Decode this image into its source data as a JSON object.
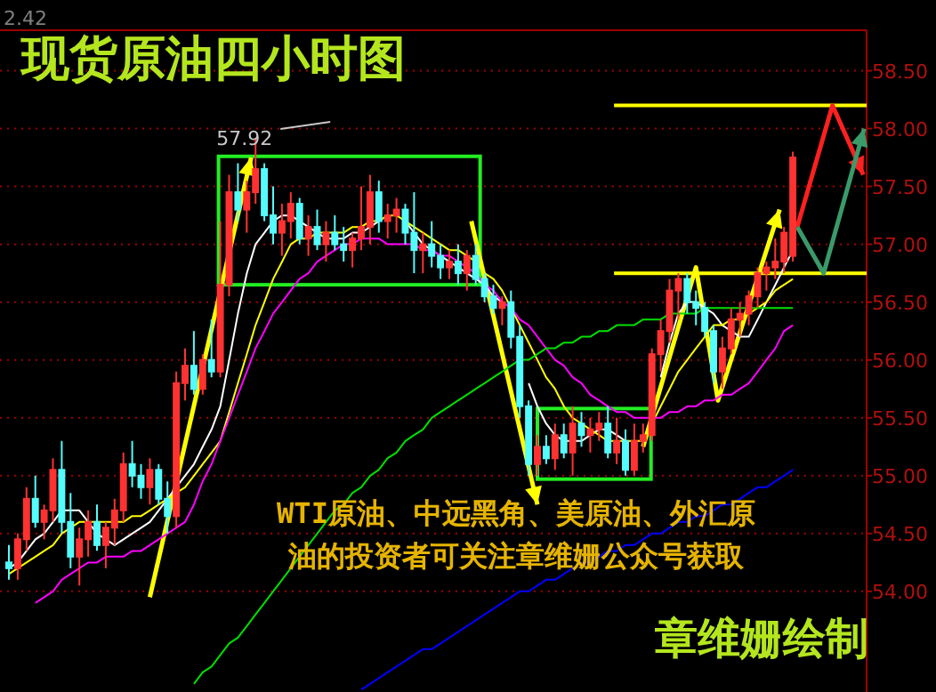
{
  "chart_data": {
    "type": "candlestick",
    "title": "现货原油四小时图",
    "annotations": [
      "57.92",
      "2.42",
      "WTI原油、中远黑角、美原油、外汇原",
      "油的投资者可关注章维姗公众号获取",
      "章维姗绘制"
    ],
    "categories": [
      null,
      null,
      null,
      null,
      null,
      null,
      null,
      null,
      null,
      null,
      null,
      null,
      null,
      null,
      null,
      null,
      null,
      null,
      null,
      null,
      null,
      null,
      null,
      null,
      null,
      null,
      null,
      null,
      null,
      null,
      null,
      null,
      null,
      null,
      null,
      null,
      null,
      null,
      null,
      null,
      null,
      null,
      null,
      null,
      null,
      null,
      null,
      null,
      null,
      null,
      null,
      null,
      null,
      null,
      null,
      null,
      null,
      null,
      null,
      null,
      null,
      null,
      null,
      null,
      null,
      null,
      null,
      null,
      null,
      null,
      null,
      null,
      null,
      null,
      null,
      null,
      null,
      null,
      null,
      null,
      null,
      null,
      null,
      null,
      null,
      null,
      null,
      null,
      null,
      null
    ],
    "ohlc": [
      [
        54.25,
        54.4,
        54.1,
        54.2
      ],
      [
        54.2,
        54.5,
        54.1,
        54.45
      ],
      [
        54.45,
        54.9,
        54.35,
        54.8
      ],
      [
        54.8,
        55.0,
        54.55,
        54.6
      ],
      [
        54.6,
        54.75,
        54.45,
        54.7
      ],
      [
        54.7,
        55.15,
        54.6,
        55.05
      ],
      [
        55.05,
        55.3,
        54.5,
        54.6
      ],
      [
        54.6,
        54.85,
        54.2,
        54.3
      ],
      [
        54.3,
        54.55,
        54.05,
        54.45
      ],
      [
        54.45,
        54.7,
        54.3,
        54.6
      ],
      [
        54.6,
        54.75,
        54.35,
        54.4
      ],
      [
        54.4,
        54.6,
        54.2,
        54.55
      ],
      [
        54.55,
        54.8,
        54.4,
        54.7
      ],
      [
        54.7,
        55.2,
        54.6,
        55.1
      ],
      [
        55.1,
        55.3,
        54.9,
        55.0
      ],
      [
        55.0,
        55.1,
        54.8,
        54.9
      ],
      [
        54.9,
        55.15,
        54.75,
        55.05
      ],
      [
        55.05,
        55.1,
        54.75,
        54.8
      ],
      [
        54.8,
        54.95,
        54.5,
        54.65
      ],
      [
        54.65,
        55.9,
        54.55,
        55.8
      ],
      [
        55.8,
        56.1,
        55.65,
        55.95
      ],
      [
        55.95,
        56.25,
        55.7,
        55.75
      ],
      [
        55.75,
        56.05,
        55.7,
        56.0
      ],
      [
        56.0,
        56.35,
        55.85,
        55.9
      ],
      [
        55.9,
        57.2,
        55.85,
        56.65
      ],
      [
        56.65,
        57.6,
        56.55,
        57.45
      ],
      [
        57.45,
        57.7,
        57.2,
        57.3
      ],
      [
        57.3,
        57.55,
        57.1,
        57.45
      ],
      [
        57.45,
        57.92,
        57.35,
        57.65
      ],
      [
        57.65,
        57.7,
        57.2,
        57.25
      ],
      [
        57.25,
        57.5,
        57.0,
        57.1
      ],
      [
        57.1,
        57.35,
        56.9,
        57.2
      ],
      [
        57.2,
        57.45,
        57.05,
        57.35
      ],
      [
        57.35,
        57.4,
        57.0,
        57.05
      ],
      [
        57.05,
        57.25,
        56.9,
        57.15
      ],
      [
        57.15,
        57.3,
        56.95,
        57.0
      ],
      [
        57.0,
        57.2,
        56.85,
        57.1
      ],
      [
        57.1,
        57.25,
        56.95,
        57.0
      ],
      [
        57.0,
        57.15,
        56.85,
        56.95
      ],
      [
        56.95,
        57.1,
        56.8,
        57.05
      ],
      [
        57.05,
        57.5,
        56.95,
        57.15
      ],
      [
        57.15,
        57.6,
        57.0,
        57.45
      ],
      [
        57.45,
        57.55,
        57.1,
        57.2
      ],
      [
        57.2,
        57.35,
        57.05,
        57.25
      ],
      [
        57.25,
        57.4,
        57.1,
        57.3
      ],
      [
        57.3,
        57.35,
        57.0,
        57.1
      ],
      [
        57.1,
        57.45,
        56.75,
        56.95
      ],
      [
        56.95,
        57.1,
        56.75,
        57.0
      ],
      [
        57.0,
        57.2,
        56.8,
        56.9
      ],
      [
        56.9,
        57.0,
        56.7,
        56.8
      ],
      [
        56.8,
        56.95,
        56.7,
        56.85
      ],
      [
        56.85,
        57.0,
        56.65,
        56.75
      ],
      [
        56.75,
        56.95,
        56.6,
        56.9
      ],
      [
        56.9,
        57.0,
        56.65,
        56.7
      ],
      [
        56.7,
        56.75,
        56.5,
        56.55
      ],
      [
        56.55,
        56.65,
        56.4,
        56.45
      ],
      [
        56.45,
        56.55,
        56.3,
        56.5
      ],
      [
        56.5,
        56.6,
        56.1,
        56.2
      ],
      [
        56.2,
        56.3,
        55.5,
        55.6
      ],
      [
        55.6,
        55.65,
        55.0,
        55.1
      ],
      [
        55.1,
        55.35,
        55.0,
        55.25
      ],
      [
        55.25,
        55.35,
        55.1,
        55.15
      ],
      [
        55.15,
        55.45,
        55.05,
        55.35
      ],
      [
        55.35,
        55.45,
        55.15,
        55.2
      ],
      [
        55.2,
        55.6,
        55.0,
        55.45
      ],
      [
        55.45,
        55.55,
        55.25,
        55.35
      ],
      [
        55.35,
        55.5,
        55.2,
        55.4
      ],
      [
        55.4,
        55.55,
        55.3,
        55.45
      ],
      [
        55.45,
        55.6,
        55.15,
        55.2
      ],
      [
        55.2,
        55.5,
        55.1,
        55.3
      ],
      [
        55.3,
        55.4,
        55.0,
        55.05
      ],
      [
        55.05,
        55.45,
        55.0,
        55.3
      ],
      [
        55.3,
        55.45,
        55.2,
        55.35
      ],
      [
        55.35,
        56.1,
        55.3,
        56.05
      ],
      [
        56.05,
        56.35,
        55.9,
        56.25
      ],
      [
        56.25,
        56.7,
        56.15,
        56.6
      ],
      [
        56.6,
        56.75,
        56.35,
        56.7
      ],
      [
        56.7,
        56.75,
        56.4,
        56.5
      ],
      [
        56.5,
        56.6,
        56.3,
        56.45
      ],
      [
        56.45,
        56.5,
        56.2,
        56.25
      ],
      [
        56.25,
        56.3,
        55.8,
        55.9
      ],
      [
        55.9,
        56.2,
        55.75,
        56.1
      ],
      [
        56.1,
        56.45,
        56.05,
        56.35
      ],
      [
        56.35,
        56.5,
        56.2,
        56.4
      ],
      [
        56.4,
        56.6,
        56.3,
        56.55
      ],
      [
        56.55,
        56.8,
        56.45,
        56.75
      ],
      [
        56.75,
        56.85,
        56.6,
        56.8
      ],
      [
        56.8,
        57.05,
        56.7,
        56.85
      ],
      [
        56.85,
        57.15,
        56.75,
        57.1
      ],
      [
        56.9,
        57.8,
        56.85,
        57.75
      ]
    ],
    "series": [
      {
        "type": "line",
        "color": "#ffffff",
        "values": [
          54.2,
          54.25,
          54.35,
          54.45,
          54.5,
          54.6,
          54.7,
          54.7,
          54.7,
          54.6,
          54.5,
          54.45,
          54.4,
          54.45,
          54.5,
          54.55,
          54.6,
          54.7,
          54.8,
          54.9,
          55.0,
          55.1,
          55.25,
          55.4,
          55.6,
          56.0,
          56.4,
          56.75,
          57.0,
          57.1,
          57.2,
          57.25,
          57.25,
          57.2,
          57.15,
          57.1,
          57.05,
          57.05,
          57.05,
          57.1,
          57.1,
          57.15,
          57.2,
          null,
          null,
          57.2,
          57.1,
          57.0,
          56.95,
          56.9,
          56.85,
          56.8,
          56.75,
          56.7,
          56.65,
          56.55,
          56.5,
          null,
          null,
          55.8,
          55.6,
          55.45,
          55.35,
          55.3,
          55.3,
          55.3,
          55.35,
          55.4,
          55.4,
          55.35,
          55.3,
          null,
          null,
          null,
          55.85,
          56.15,
          56.4,
          56.5,
          56.5,
          56.45,
          56.4,
          56.3,
          56.25,
          56.2,
          56.2,
          56.35,
          56.5,
          56.65,
          56.8,
          56.95
        ]
      },
      {
        "type": "line",
        "color": "#ffff00",
        "values": [
          54.15,
          54.2,
          54.25,
          54.3,
          54.35,
          54.4,
          54.5,
          54.55,
          54.6,
          54.6,
          54.6,
          54.6,
          54.6,
          54.6,
          54.65,
          54.65,
          54.7,
          54.75,
          54.8,
          54.85,
          54.9,
          55.0,
          55.1,
          55.2,
          55.3,
          55.55,
          55.8,
          56.05,
          56.3,
          56.5,
          56.7,
          56.85,
          57.0,
          57.05,
          57.05,
          57.1,
          57.1,
          57.1,
          57.1,
          57.15,
          57.15,
          57.2,
          57.2,
          57.25,
          57.25,
          57.2,
          57.15,
          57.1,
          57.05,
          57.0,
          56.95,
          56.95,
          56.9,
          56.85,
          56.75,
          56.7,
          56.6,
          56.45,
          56.3,
          56.15,
          56.0,
          55.85,
          55.75,
          55.6,
          55.5,
          55.45,
          55.4,
          55.35,
          55.3,
          55.3,
          55.3,
          55.3,
          55.3,
          55.45,
          55.6,
          55.75,
          55.9,
          56.0,
          56.1,
          56.2,
          56.3,
          56.3,
          56.35,
          56.35,
          56.4,
          56.45,
          56.5,
          56.6,
          56.65,
          56.7
        ]
      },
      {
        "type": "line",
        "color": "#ff00ff",
        "values": [
          null,
          null,
          null,
          53.9,
          53.95,
          54.0,
          54.1,
          54.15,
          54.2,
          54.25,
          54.25,
          54.3,
          54.3,
          54.3,
          54.35,
          54.35,
          54.4,
          54.45,
          54.5,
          54.55,
          54.6,
          54.75,
          54.95,
          55.1,
          55.3,
          55.5,
          55.7,
          55.9,
          56.1,
          56.25,
          56.4,
          56.5,
          56.6,
          56.7,
          56.75,
          56.85,
          56.9,
          56.95,
          57.0,
          57.0,
          57.05,
          57.05,
          57.05,
          57.0,
          57.0,
          57.0,
          57.0,
          56.95,
          56.95,
          56.9,
          56.9,
          56.85,
          56.8,
          56.75,
          56.65,
          56.6,
          56.5,
          56.45,
          56.35,
          56.3,
          56.2,
          56.1,
          56.0,
          55.95,
          55.85,
          55.8,
          55.7,
          55.65,
          55.6,
          55.55,
          55.55,
          55.5,
          55.5,
          55.5,
          55.5,
          55.55,
          55.55,
          55.6,
          55.6,
          55.65,
          55.65,
          55.7,
          55.7,
          55.75,
          55.8,
          55.9,
          56.0,
          56.1,
          56.25,
          56.3
        ]
      },
      {
        "type": "line",
        "color": "#00e000",
        "values": [
          null,
          null,
          null,
          null,
          null,
          null,
          null,
          null,
          null,
          null,
          null,
          null,
          null,
          null,
          null,
          null,
          null,
          null,
          null,
          null,
          null,
          53.2,
          53.3,
          53.35,
          53.45,
          53.55,
          53.6,
          53.7,
          53.8,
          53.9,
          54.0,
          54.1,
          54.2,
          54.3,
          54.4,
          54.5,
          54.6,
          54.7,
          54.75,
          54.85,
          54.9,
          55.0,
          55.05,
          55.15,
          55.2,
          55.3,
          55.35,
          55.4,
          55.5,
          55.55,
          55.6,
          55.65,
          55.7,
          55.75,
          55.8,
          55.85,
          55.9,
          55.95,
          56.0,
          56.0,
          56.05,
          56.1,
          56.1,
          56.15,
          56.15,
          56.2,
          56.2,
          56.25,
          56.25,
          56.3,
          56.3,
          56.3,
          56.35,
          56.35,
          56.35,
          56.4,
          56.4,
          56.4,
          56.4,
          56.45,
          56.45,
          56.45,
          56.45,
          56.45,
          56.45,
          56.45,
          56.45,
          56.45,
          56.45,
          56.45
        ]
      },
      {
        "type": "line",
        "color": "#0000ff",
        "values": [
          null,
          null,
          null,
          null,
          null,
          null,
          null,
          null,
          null,
          null,
          null,
          null,
          null,
          null,
          null,
          null,
          null,
          null,
          null,
          null,
          null,
          null,
          null,
          null,
          null,
          null,
          null,
          null,
          null,
          null,
          null,
          null,
          null,
          null,
          null,
          null,
          null,
          null,
          null,
          null,
          53.15,
          53.2,
          53.25,
          53.3,
          53.35,
          53.4,
          53.45,
          53.5,
          53.5,
          53.55,
          53.6,
          53.65,
          53.7,
          53.75,
          53.8,
          53.85,
          53.9,
          53.95,
          54.0,
          54.0,
          54.05,
          54.1,
          54.1,
          54.15,
          54.2,
          54.25,
          54.25,
          54.3,
          54.35,
          54.35,
          54.4,
          54.4,
          54.45,
          54.5,
          54.5,
          54.55,
          54.6,
          54.6,
          54.65,
          54.65,
          54.7,
          54.75,
          54.75,
          54.8,
          54.85,
          54.9,
          54.9,
          54.95,
          55.0,
          55.05
        ]
      }
    ],
    "ylim": [
      53.13,
      58.85
    ],
    "yticks": [
      {
        "value": 54,
        "label": "54.00"
      },
      {
        "value": 54.5,
        "label": "54.50"
      },
      {
        "value": 55,
        "label": "55.00"
      },
      {
        "value": 55.5,
        "label": "55.50"
      },
      {
        "value": 56,
        "label": "56.00"
      },
      {
        "value": 56.5,
        "label": "56.50"
      },
      {
        "value": 57,
        "label": "57.00"
      },
      {
        "value": 57.5,
        "label": "57.50"
      },
      {
        "value": 58,
        "label": "58.00"
      },
      {
        "value": 58.5,
        "label": "58.50"
      }
    ],
    "tick_labels": "y",
    "grid": "y"
  }
}
